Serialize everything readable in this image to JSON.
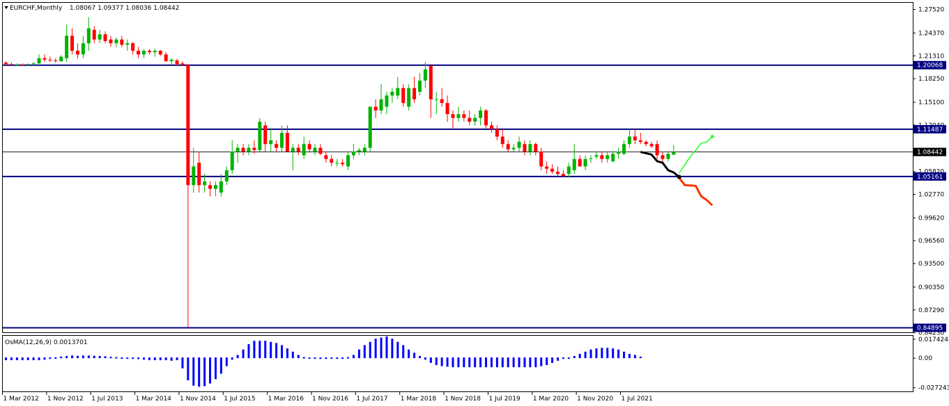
{
  "header": {
    "symbol": "EURCHF,Monthly",
    "ohlc": "1.08067 1.09377 1.08036 1.08442"
  },
  "colors": {
    "bull": "#00b300",
    "bear": "#ff0000",
    "level_line": "#000080",
    "osma": "#0000ff",
    "forecast_main": "#000000",
    "forecast_up": "#33ff33",
    "forecast_down": "#ff3300"
  },
  "chart_data": [
    {
      "type": "candlestick",
      "title": "EURCHF,Monthly",
      "ylim": [
        0.8429,
        1.2842
      ],
      "y_ticks": [
        "1.27520",
        "1.24370",
        "1.21310",
        "1.18250",
        "1.15100",
        "1.12040",
        "1.05820",
        "1.02770",
        "0.99620",
        "0.96560",
        "0.93500",
        "0.90350",
        "0.87290",
        "0.84230"
      ],
      "x_ticks": [
        {
          "label": "1 Mar 2012",
          "i": 0
        },
        {
          "label": "1 Nov 2012",
          "i": 8
        },
        {
          "label": "1 Jul 2013",
          "i": 16
        },
        {
          "label": "1 Mar 2014",
          "i": 24
        },
        {
          "label": "1 Nov 2014",
          "i": 32
        },
        {
          "label": "1 Jul 2015",
          "i": 40
        },
        {
          "label": "1 Mar 2016",
          "i": 48
        },
        {
          "label": "1 Nov 2016",
          "i": 56
        },
        {
          "label": "1 Jul 2017",
          "i": 64
        },
        {
          "label": "1 Mar 2018",
          "i": 72
        },
        {
          "label": "1 Nov 2018",
          "i": 80
        },
        {
          "label": "1 Jul 2019",
          "i": 88
        },
        {
          "label": "1 Mar 2020",
          "i": 96
        },
        {
          "label": "1 Nov 2020",
          "i": 104
        },
        {
          "label": "1 Jul 2021",
          "i": 112
        }
      ],
      "levels": [
        {
          "label": "1.20068",
          "value": 1.20068
        },
        {
          "label": "1.11487",
          "value": 1.11487
        },
        {
          "label": "1.05161",
          "value": 1.05161
        },
        {
          "label": "0.84895",
          "value": 0.84895
        }
      ],
      "current_price": {
        "label": "1.08442",
        "value": 1.08442
      },
      "candles": [
        [
          1.204,
          1.206,
          1.2,
          1.202
        ],
        [
          1.202,
          1.204,
          1.2,
          1.201
        ],
        [
          1.201,
          1.203,
          1.2,
          1.2015
        ],
        [
          1.2015,
          1.203,
          1.2,
          1.201
        ],
        [
          1.201,
          1.203,
          1.2,
          1.202
        ],
        [
          1.202,
          1.205,
          1.2,
          1.203
        ],
        [
          1.203,
          1.215,
          1.201,
          1.21
        ],
        [
          1.21,
          1.215,
          1.205,
          1.208
        ],
        [
          1.208,
          1.212,
          1.205,
          1.207
        ],
        [
          1.207,
          1.21,
          1.204,
          1.206
        ],
        [
          1.206,
          1.214,
          1.205,
          1.212
        ],
        [
          1.21,
          1.255,
          1.205,
          1.24
        ],
        [
          1.24,
          1.25,
          1.215,
          1.22
        ],
        [
          1.22,
          1.23,
          1.21,
          1.215
        ],
        [
          1.215,
          1.24,
          1.21,
          1.23
        ],
        [
          1.23,
          1.265,
          1.22,
          1.25
        ],
        [
          1.248,
          1.253,
          1.23,
          1.235
        ],
        [
          1.235,
          1.248,
          1.23,
          1.242
        ],
        [
          1.242,
          1.246,
          1.23,
          1.233
        ],
        [
          1.235,
          1.24,
          1.225,
          1.23
        ],
        [
          1.23,
          1.238,
          1.225,
          1.235
        ],
        [
          1.235,
          1.24,
          1.225,
          1.228
        ],
        [
          1.228,
          1.235,
          1.22,
          1.23
        ],
        [
          1.23,
          1.232,
          1.215,
          1.22
        ],
        [
          1.22,
          1.225,
          1.21,
          1.215
        ],
        [
          1.215,
          1.222,
          1.21,
          1.22
        ],
        [
          1.22,
          1.222,
          1.215,
          1.218
        ],
        [
          1.218,
          1.223,
          1.212,
          1.22
        ],
        [
          1.22,
          1.221,
          1.213,
          1.215
        ],
        [
          1.215,
          1.218,
          1.205,
          1.206
        ],
        [
          1.206,
          1.21,
          1.202,
          1.208
        ],
        [
          1.207,
          1.209,
          1.2,
          1.202
        ],
        [
          1.203,
          1.206,
          1.2,
          1.201
        ],
        [
          1.201,
          1.202,
          0.85,
          1.04
        ],
        [
          1.04,
          1.09,
          1.03,
          1.065
        ],
        [
          1.07,
          1.085,
          1.03,
          1.04
        ],
        [
          1.04,
          1.055,
          1.03,
          1.045
        ],
        [
          1.04,
          1.045,
          1.025,
          1.035
        ],
        [
          1.035,
          1.045,
          1.025,
          1.04
        ],
        [
          1.03,
          1.055,
          1.025,
          1.045
        ],
        [
          1.045,
          1.065,
          1.04,
          1.06
        ],
        [
          1.06,
          1.1,
          1.055,
          1.085
        ],
        [
          1.085,
          1.095,
          1.07,
          1.09
        ],
        [
          1.09,
          1.095,
          1.08,
          1.085
        ],
        [
          1.085,
          1.095,
          1.08,
          1.09
        ],
        [
          1.09,
          1.1,
          1.082,
          1.087
        ],
        [
          1.087,
          1.13,
          1.085,
          1.125
        ],
        [
          1.12,
          1.125,
          1.085,
          1.095
        ],
        [
          1.095,
          1.115,
          1.085,
          1.1
        ],
        [
          1.095,
          1.1,
          1.085,
          1.09
        ],
        [
          1.09,
          1.12,
          1.085,
          1.11
        ],
        [
          1.11,
          1.12,
          1.085,
          1.085
        ],
        [
          1.085,
          1.095,
          1.06,
          1.09
        ],
        [
          1.09,
          1.095,
          1.08,
          1.085
        ],
        [
          1.08,
          1.105,
          1.075,
          1.095
        ],
        [
          1.095,
          1.1,
          1.085,
          1.088
        ],
        [
          1.085,
          1.095,
          1.08,
          1.09
        ],
        [
          1.09,
          1.095,
          1.08,
          1.082
        ],
        [
          1.08,
          1.085,
          1.07,
          1.075
        ],
        [
          1.075,
          1.08,
          1.065,
          1.07
        ],
        [
          1.07,
          1.075,
          1.065,
          1.07
        ],
        [
          1.07,
          1.075,
          1.065,
          1.068
        ],
        [
          1.065,
          1.085,
          1.06,
          1.08
        ],
        [
          1.08,
          1.095,
          1.075,
          1.085
        ],
        [
          1.085,
          1.09,
          1.08,
          1.087
        ],
        [
          1.085,
          1.095,
          1.08,
          1.09
        ],
        [
          1.09,
          1.145,
          1.085,
          1.145
        ],
        [
          1.145,
          1.155,
          1.13,
          1.14
        ],
        [
          1.14,
          1.175,
          1.135,
          1.155
        ],
        [
          1.145,
          1.165,
          1.135,
          1.16
        ],
        [
          1.16,
          1.17,
          1.15,
          1.165
        ],
        [
          1.16,
          1.185,
          1.155,
          1.17
        ],
        [
          1.17,
          1.175,
          1.145,
          1.15
        ],
        [
          1.145,
          1.175,
          1.14,
          1.17
        ],
        [
          1.17,
          1.185,
          1.15,
          1.155
        ],
        [
          1.165,
          1.19,
          1.16,
          1.18
        ],
        [
          1.18,
          1.205,
          1.17,
          1.195
        ],
        [
          1.2,
          1.2,
          1.13,
          1.155
        ],
        [
          1.155,
          1.165,
          1.135,
          1.155
        ],
        [
          1.155,
          1.17,
          1.145,
          1.15
        ],
        [
          1.15,
          1.16,
          1.125,
          1.135
        ],
        [
          1.135,
          1.14,
          1.115,
          1.13
        ],
        [
          1.13,
          1.145,
          1.125,
          1.135
        ],
        [
          1.135,
          1.14,
          1.125,
          1.13
        ],
        [
          1.13,
          1.14,
          1.12,
          1.125
        ],
        [
          1.125,
          1.135,
          1.12,
          1.13
        ],
        [
          1.13,
          1.145,
          1.12,
          1.14
        ],
        [
          1.14,
          1.142,
          1.115,
          1.12
        ],
        [
          1.12,
          1.125,
          1.11,
          1.115
        ],
        [
          1.115,
          1.12,
          1.1,
          1.105
        ],
        [
          1.105,
          1.115,
          1.09,
          1.095
        ],
        [
          1.095,
          1.1,
          1.085,
          1.088
        ],
        [
          1.088,
          1.095,
          1.085,
          1.09
        ],
        [
          1.09,
          1.105,
          1.085,
          1.098
        ],
        [
          1.095,
          1.1,
          1.08,
          1.085
        ],
        [
          1.085,
          1.1,
          1.08,
          1.095
        ],
        [
          1.095,
          1.097,
          1.08,
          1.085
        ],
        [
          1.085,
          1.09,
          1.06,
          1.065
        ],
        [
          1.065,
          1.072,
          1.055,
          1.062
        ],
        [
          1.062,
          1.068,
          1.055,
          1.058
        ],
        [
          1.058,
          1.065,
          1.05,
          1.055
        ],
        [
          1.055,
          1.06,
          1.05,
          1.052
        ],
        [
          1.055,
          1.07,
          1.05,
          1.065
        ],
        [
          1.06,
          1.095,
          1.055,
          1.075
        ],
        [
          1.075,
          1.08,
          1.065,
          1.065
        ],
        [
          1.065,
          1.08,
          1.06,
          1.075
        ],
        [
          1.075,
          1.08,
          1.07,
          1.076
        ],
        [
          1.078,
          1.085,
          1.075,
          1.08
        ],
        [
          1.08,
          1.085,
          1.07,
          1.075
        ],
        [
          1.075,
          1.085,
          1.07,
          1.08
        ],
        [
          1.072,
          1.085,
          1.07,
          1.082
        ],
        [
          1.082,
          1.09,
          1.075,
          1.085
        ],
        [
          1.082,
          1.1,
          1.08,
          1.095
        ],
        [
          1.095,
          1.115,
          1.09,
          1.105
        ],
        [
          1.105,
          1.115,
          1.095,
          1.1
        ],
        [
          1.1,
          1.11,
          1.095,
          1.098
        ],
        [
          1.098,
          1.1,
          1.092,
          1.095
        ],
        [
          1.095,
          1.098,
          1.09,
          1.092
        ],
        [
          1.095,
          1.1,
          1.075,
          1.08
        ],
        [
          1.08,
          1.085,
          1.07,
          1.075
        ],
        [
          1.075,
          1.085,
          1.072,
          1.082
        ],
        [
          1.0807,
          1.0938,
          1.0804,
          1.0844
        ]
      ],
      "forecast": {
        "main": [
          [
            115,
            1.0844
          ],
          [
            117,
            1.081
          ],
          [
            118,
            1.072
          ],
          [
            119,
            1.07
          ],
          [
            120,
            1.06
          ],
          [
            121,
            1.057
          ],
          [
            122,
            1.051
          ]
        ],
        "up": [
          [
            122,
            1.056
          ],
          [
            124,
            1.078
          ],
          [
            126,
            1.096
          ],
          [
            127,
            1.098
          ],
          [
            128,
            1.105
          ]
        ],
        "down": [
          [
            122,
            1.05
          ],
          [
            123,
            1.04
          ],
          [
            125,
            1.039
          ],
          [
            126,
            1.025
          ],
          [
            127,
            1.02
          ],
          [
            128,
            1.013
          ]
        ]
      }
    },
    {
      "type": "bar",
      "title": "OsMA(12,26,9) 0.0013701",
      "ylim": [
        -0.03,
        0.02
      ],
      "y_ticks": [
        "0.0174248",
        "0.00",
        "-0.0272430"
      ],
      "values": [
        -0.0025,
        -0.0025,
        -0.0025,
        -0.0025,
        -0.0025,
        -0.0025,
        -0.0025,
        -0.002,
        0.0,
        0.0008,
        0.0015,
        0.002,
        0.0025,
        0.0022,
        0.0025,
        0.0025,
        0.0022,
        0.002,
        0.0018,
        0.0012,
        0.001,
        0.0005,
        0.0,
        -0.001,
        -0.0015,
        -0.002,
        -0.0025,
        -0.0025,
        -0.0025,
        -0.0025,
        -0.003,
        -0.0025,
        -0.01,
        -0.021,
        -0.026,
        -0.027,
        -0.0265,
        -0.024,
        -0.02,
        -0.015,
        -0.008,
        -0.002,
        0.003,
        0.008,
        0.013,
        0.016,
        0.016,
        0.016,
        0.015,
        0.014,
        0.012,
        0.009,
        0.006,
        0.003,
        0.001,
        0.0005,
        0.0002,
        0.0,
        -0.0005,
        -0.0005,
        -0.0005,
        0.0002,
        0.001,
        0.003,
        0.008,
        0.012,
        0.015,
        0.018,
        0.019,
        0.02,
        0.018,
        0.015,
        0.012,
        0.008,
        0.005,
        0.002,
        -0.002,
        -0.005,
        -0.007,
        -0.008,
        -0.0085,
        -0.009,
        -0.009,
        -0.009,
        -0.009,
        -0.009,
        -0.009,
        -0.009,
        -0.009,
        -0.009,
        -0.009,
        -0.009,
        -0.009,
        -0.009,
        -0.009,
        -0.009,
        -0.009,
        -0.008,
        -0.007,
        -0.005,
        -0.003,
        -0.001,
        0.0005,
        0.002,
        0.004,
        0.006,
        0.008,
        0.009,
        0.0095,
        0.0095,
        0.009,
        0.008,
        0.006,
        0.004,
        0.003,
        0.0014
      ]
    }
  ]
}
